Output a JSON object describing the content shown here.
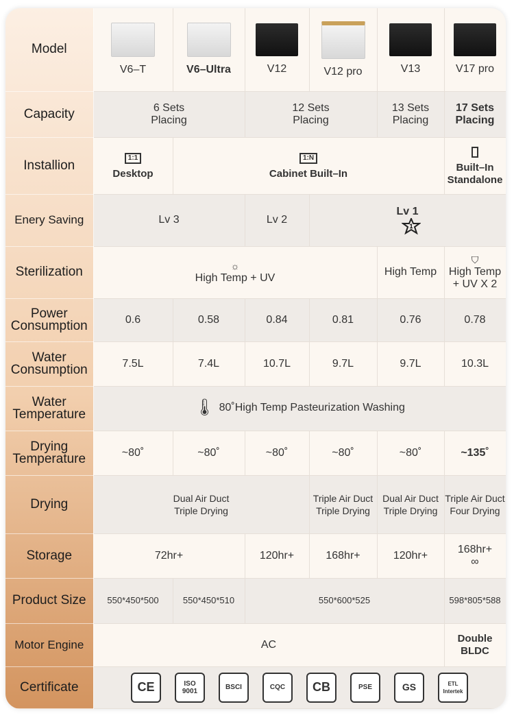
{
  "table": {
    "rows": [
      {
        "label": "Model",
        "cells": [
          "V6–T",
          "V6–Ultra",
          "V12",
          "V12 pro",
          "V13",
          "V17 pro"
        ]
      },
      {
        "label": "Capacity",
        "cells": [
          "6 Sets\nPlacing",
          "12 Sets\nPlacing",
          "13 Sets\nPlacing",
          "17 Sets\nPlacing"
        ]
      },
      {
        "label": "Installion",
        "cells": [
          "Desktop",
          "Cabinet Built–In",
          "Built–In\nStandalone"
        ],
        "icons": [
          "1:1",
          "1:N"
        ]
      },
      {
        "label": "Enery Saving",
        "cells": [
          "Lv 3",
          "Lv 2",
          "Lv 1"
        ],
        "badge": "1"
      },
      {
        "label": "Sterilization",
        "cells": [
          "High Temp + UV",
          "High Temp",
          "High Temp\n+ UV X 2"
        ]
      },
      {
        "label": "Power\nConsumption",
        "cells": [
          "0.6",
          "0.58",
          "0.84",
          "0.81",
          "0.76",
          "0.78"
        ]
      },
      {
        "label": "Water\nConsumption",
        "cells": [
          "7.5L",
          "7.4L",
          "10.7L",
          "9.7L",
          "9.7L",
          "10.3L"
        ]
      },
      {
        "label": "Water\nTemperature",
        "cells": [
          "80˚High Temp Pasteurization Washing"
        ]
      },
      {
        "label": "Drying\nTemperature",
        "cells": [
          "~80˚",
          "~80˚",
          "~80˚",
          "~80˚",
          "~80˚",
          "~135˚"
        ]
      },
      {
        "label": "Drying",
        "cells": [
          "Dual Air Duct\nTriple Drying",
          "Triple Air Duct\nTriple Drying",
          "Dual Air Duct\nTriple Drying",
          "Triple Air Duct\nFour Drying"
        ]
      },
      {
        "label": "Storage",
        "cells": [
          "72hr+",
          "120hr+",
          "168hr+",
          "120hr+",
          "168hr+\n∞"
        ]
      },
      {
        "label": "Product Size",
        "cells": [
          "550*450*500",
          "550*450*510",
          "550*600*525",
          "598*805*588"
        ]
      },
      {
        "label": "Motor Engine",
        "cells": [
          "AC",
          "Double\nBLDC"
        ]
      },
      {
        "label": "Certificate",
        "cells": [
          "CE",
          "ISO\n9001",
          "BSCI",
          "CQC",
          "CB",
          "PSE",
          "GS",
          "ETL\nIntertek"
        ]
      }
    ]
  }
}
